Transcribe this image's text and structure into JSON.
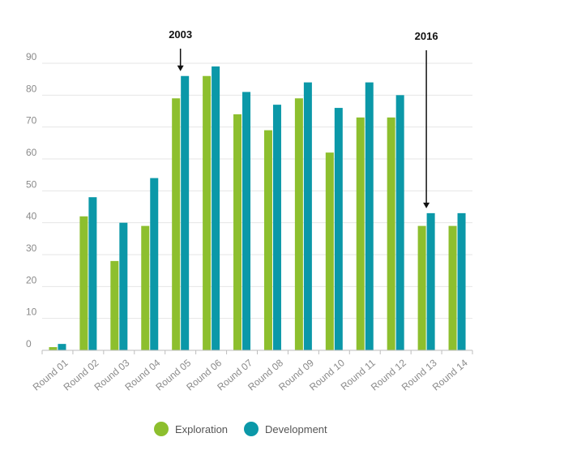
{
  "chart_data": {
    "type": "bar",
    "title": "",
    "xlabel": "",
    "ylabel": "",
    "ylim": [
      0,
      90
    ],
    "yticks": [
      0,
      10,
      20,
      30,
      40,
      50,
      60,
      70,
      80,
      90
    ],
    "grid": true,
    "legend_position": "bottom",
    "categories": [
      "Round 01",
      "Round 02",
      "Round 03",
      "Round 04",
      "Round 05",
      "Round 06",
      "Round 07",
      "Round 08",
      "Round 09",
      "Round 10",
      "Round 11",
      "Round 12",
      "Round 13",
      "Round 14"
    ],
    "series": [
      {
        "name": "Exploration",
        "color": "#8dbf2e",
        "values": [
          1,
          42,
          28,
          39,
          79,
          86,
          74,
          69,
          79,
          62,
          73,
          73,
          39,
          39
        ]
      },
      {
        "name": "Development",
        "color": "#0b98a8",
        "values": [
          2,
          48,
          40,
          54,
          86,
          89,
          81,
          77,
          84,
          76,
          84,
          80,
          43,
          43
        ]
      }
    ],
    "annotations": [
      {
        "text": "2003",
        "category": "Round 05"
      },
      {
        "text": "2016",
        "category": "Round 13"
      }
    ]
  }
}
